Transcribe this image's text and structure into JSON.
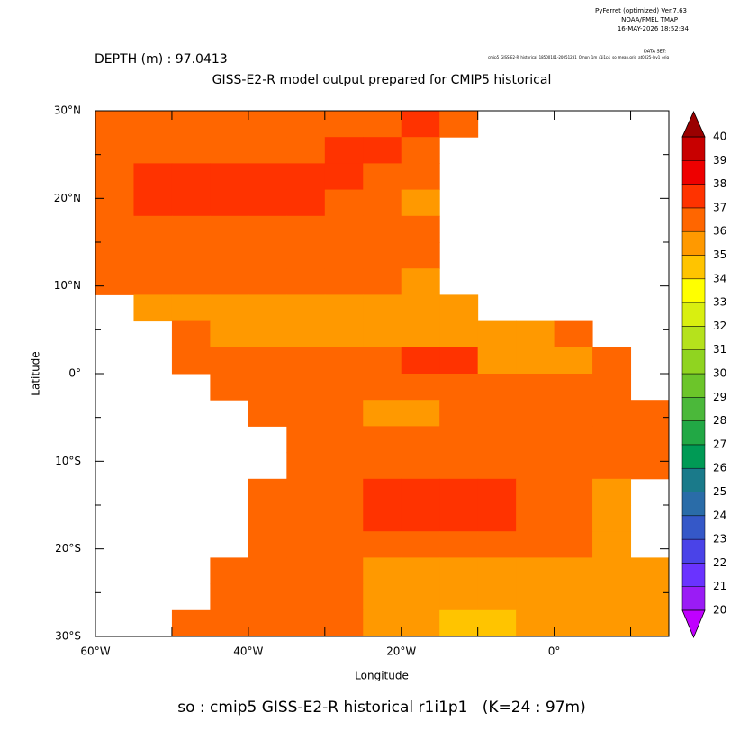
{
  "chart_data": {
    "type": "heatmap",
    "header": [
      "PyFerret (optimized) Ver.7.63",
      "NOAA/PMEL TMAP",
      "16-MAY-2026 18:52:34"
    ],
    "dataset_label": "DATA SET:",
    "dataset": "cmip5_GISS-E2-R_historical_18500101-20051231_Omon_1m_r1i1p1_so_mean.grid_at0025-lev1_orig",
    "subtitle": "DEPTH (m) : 97.0413",
    "title": "GISS-E2-R model output prepared for CMIP5 historical",
    "x_label": "Longitude",
    "y_label": "Latitude",
    "footer": "so : cmip5 GISS-E2-R historical r1i1p1   (K=24 : 97m)",
    "x": [
      -57.5,
      -52.5,
      -47.5,
      -42.5,
      -37.5,
      -32.5,
      -27.5,
      -22.5,
      -17.5,
      -12.5,
      -7.5,
      -2.5,
      2.5,
      7.5,
      12.5
    ],
    "y": [
      28.5,
      25.5,
      22.5,
      19.5,
      16.5,
      13.5,
      10.5,
      7.5,
      4.5,
      1.5,
      -1.5,
      -4.5,
      -7.5,
      -10.5,
      -13.5,
      -16.5,
      -19.5,
      -22.5,
      -25.5,
      -28.5
    ],
    "values": [
      [
        36.5,
        36.5,
        36.5,
        36.5,
        36.5,
        36.5,
        36.5,
        36.5,
        37.5,
        36.5,
        null,
        null,
        null,
        null,
        null
      ],
      [
        36.5,
        36.5,
        36.5,
        36.5,
        36.5,
        36.5,
        37.5,
        37.5,
        36.5,
        null,
        null,
        null,
        null,
        null,
        null
      ],
      [
        36.5,
        37.5,
        37.5,
        37.5,
        37.5,
        37.5,
        37.5,
        36.5,
        36.5,
        null,
        null,
        null,
        null,
        null,
        null
      ],
      [
        36.5,
        37.5,
        37.5,
        37.5,
        37.5,
        37.5,
        36.5,
        36.5,
        35.5,
        null,
        null,
        null,
        null,
        null,
        null
      ],
      [
        36.5,
        36.5,
        36.5,
        36.5,
        36.5,
        36.5,
        36.5,
        36.5,
        36.5,
        null,
        null,
        null,
        null,
        null,
        null
      ],
      [
        36.5,
        36.5,
        36.5,
        36.5,
        36.5,
        36.5,
        36.5,
        36.5,
        36.5,
        null,
        null,
        null,
        null,
        null,
        null
      ],
      [
        36.5,
        36.5,
        36.5,
        36.5,
        36.5,
        36.5,
        36.5,
        36.5,
        35.5,
        null,
        null,
        null,
        null,
        null,
        null
      ],
      [
        null,
        35.5,
        35.5,
        35.5,
        35.5,
        35.5,
        35.5,
        35.5,
        35.5,
        35.5,
        null,
        null,
        null,
        null,
        null
      ],
      [
        null,
        null,
        36.5,
        35.5,
        35.5,
        35.5,
        35.5,
        35.5,
        35.5,
        35.5,
        35.5,
        35.5,
        36.5,
        null,
        null
      ],
      [
        null,
        null,
        36.5,
        36.5,
        36.5,
        36.5,
        36.5,
        36.5,
        37.5,
        37.5,
        35.5,
        35.5,
        35.5,
        36.5,
        null
      ],
      [
        null,
        null,
        null,
        36.5,
        36.5,
        36.5,
        36.5,
        36.5,
        36.5,
        36.5,
        36.5,
        36.5,
        36.5,
        36.5,
        null
      ],
      [
        null,
        null,
        null,
        null,
        36.5,
        36.5,
        36.5,
        35.5,
        35.5,
        36.5,
        36.5,
        36.5,
        36.5,
        36.5,
        36.5
      ],
      [
        null,
        null,
        null,
        null,
        null,
        36.5,
        36.5,
        36.5,
        36.5,
        36.5,
        36.5,
        36.5,
        36.5,
        36.5,
        36.5
      ],
      [
        null,
        null,
        null,
        null,
        null,
        36.5,
        36.5,
        36.5,
        36.5,
        36.5,
        36.5,
        36.5,
        36.5,
        36.5,
        36.5
      ],
      [
        null,
        null,
        null,
        null,
        36.5,
        36.5,
        36.5,
        37.5,
        37.5,
        37.5,
        37.5,
        36.5,
        36.5,
        35.5,
        null
      ],
      [
        null,
        null,
        null,
        null,
        36.5,
        36.5,
        36.5,
        37.5,
        37.5,
        37.5,
        37.5,
        36.5,
        36.5,
        35.5,
        null
      ],
      [
        null,
        null,
        null,
        null,
        36.5,
        36.5,
        36.5,
        36.5,
        36.5,
        36.5,
        36.5,
        36.5,
        36.5,
        35.5,
        null
      ],
      [
        null,
        null,
        null,
        36.5,
        36.5,
        36.5,
        36.5,
        35.5,
        35.5,
        35.5,
        35.5,
        35.5,
        35.5,
        35.5,
        35.5
      ],
      [
        null,
        null,
        null,
        36.5,
        36.5,
        36.5,
        36.5,
        35.5,
        35.5,
        35.5,
        35.5,
        35.5,
        35.5,
        35.5,
        35.5
      ],
      [
        null,
        null,
        36.5,
        36.5,
        36.5,
        36.5,
        36.5,
        35.5,
        35.5,
        34.5,
        34.5,
        35.5,
        35.5,
        35.5,
        35.5
      ]
    ],
    "xlim": [
      -60,
      15
    ],
    "ylim": [
      -30,
      30
    ],
    "xticks": [
      {
        "value": -60,
        "label": "60°W"
      },
      {
        "value": -40,
        "label": "40°W"
      },
      {
        "value": -20,
        "label": "20°W"
      },
      {
        "value": 0,
        "label": "0°"
      }
    ],
    "xminor": [
      -50,
      -30,
      -10,
      10
    ],
    "yticks": [
      {
        "value": 30,
        "label": "30°N"
      },
      {
        "value": 20,
        "label": "20°N"
      },
      {
        "value": 10,
        "label": "10°N"
      },
      {
        "value": 0,
        "label": "0°"
      },
      {
        "value": -10,
        "label": "10°S"
      },
      {
        "value": -20,
        "label": "20°S"
      },
      {
        "value": -30,
        "label": "30°S"
      }
    ],
    "yminor": [
      25,
      15,
      5,
      -5,
      -15,
      -25
    ],
    "levels": [
      20,
      21,
      22,
      23,
      24,
      25,
      26,
      27,
      28,
      29,
      30,
      31,
      32,
      33,
      34,
      35,
      36,
      37,
      38,
      39,
      40
    ],
    "colors": [
      "#9a1cf5",
      "#6a33ff",
      "#4a43e8",
      "#3558c8",
      "#2a6ca8",
      "#1a7a8a",
      "#009a55",
      "#22a845",
      "#4bb83a",
      "#6cc52a",
      "#90d420",
      "#b5e21c",
      "#d9ef10",
      "#ffff00",
      "#ffc400",
      "#ff9900",
      "#ff6600",
      "#ff3300",
      "#ee0000",
      "#c80000"
    ],
    "under_color": "#c000ff",
    "over_color": "#9a0000"
  }
}
